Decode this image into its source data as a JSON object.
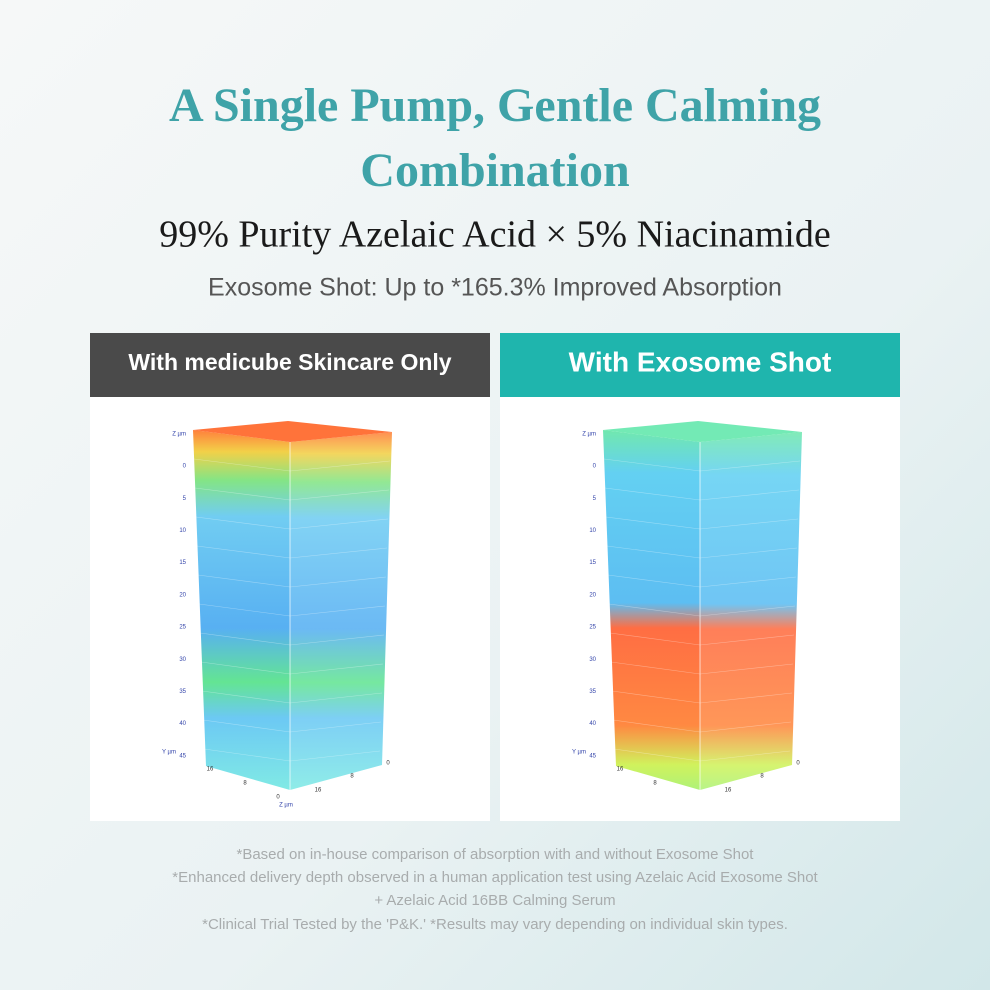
{
  "header": {
    "title_lines": [
      "A Single Pump, Gentle Calming",
      "Combination"
    ],
    "subtitle": "99% Purity Azelaic Acid × 5% Niacinamide",
    "tagline": "Exosome Shot: Up to *165.3% Improved Absorption"
  },
  "panels": [
    {
      "label": "With medicube Skincare Only",
      "z_axis_label": "Z µm",
      "z_ticks": [
        "0",
        "5",
        "10",
        "15",
        "20",
        "25",
        "30",
        "35",
        "40",
        "45"
      ],
      "y_axis_label": "Y µm",
      "left_base_ticks": [
        "16",
        "8",
        "0"
      ],
      "right_base_ticks": [
        "0",
        "8",
        "16"
      ],
      "base_axis_label": "Z µm"
    },
    {
      "label": "With Exosome Shot",
      "z_axis_label": "Z µm",
      "z_ticks": [
        "0",
        "5",
        "10",
        "15",
        "20",
        "25",
        "30",
        "35",
        "40",
        "45"
      ],
      "y_axis_label": "Y µm",
      "left_base_ticks": [
        "16",
        "8"
      ],
      "right_base_ticks": [
        "0",
        "8",
        "16"
      ]
    }
  ],
  "footnotes": [
    "*Based on in-house comparison of absorption with and without Exosome Shot",
    "*Enhanced delivery depth observed in a human application test using Azelaic Acid Exosome Shot",
    "+ Azelaic Acid 16BB Calming Serum",
    "*Clinical Trial Tested by the 'P&K.' *Results may vary depending on individual skin types."
  ]
}
